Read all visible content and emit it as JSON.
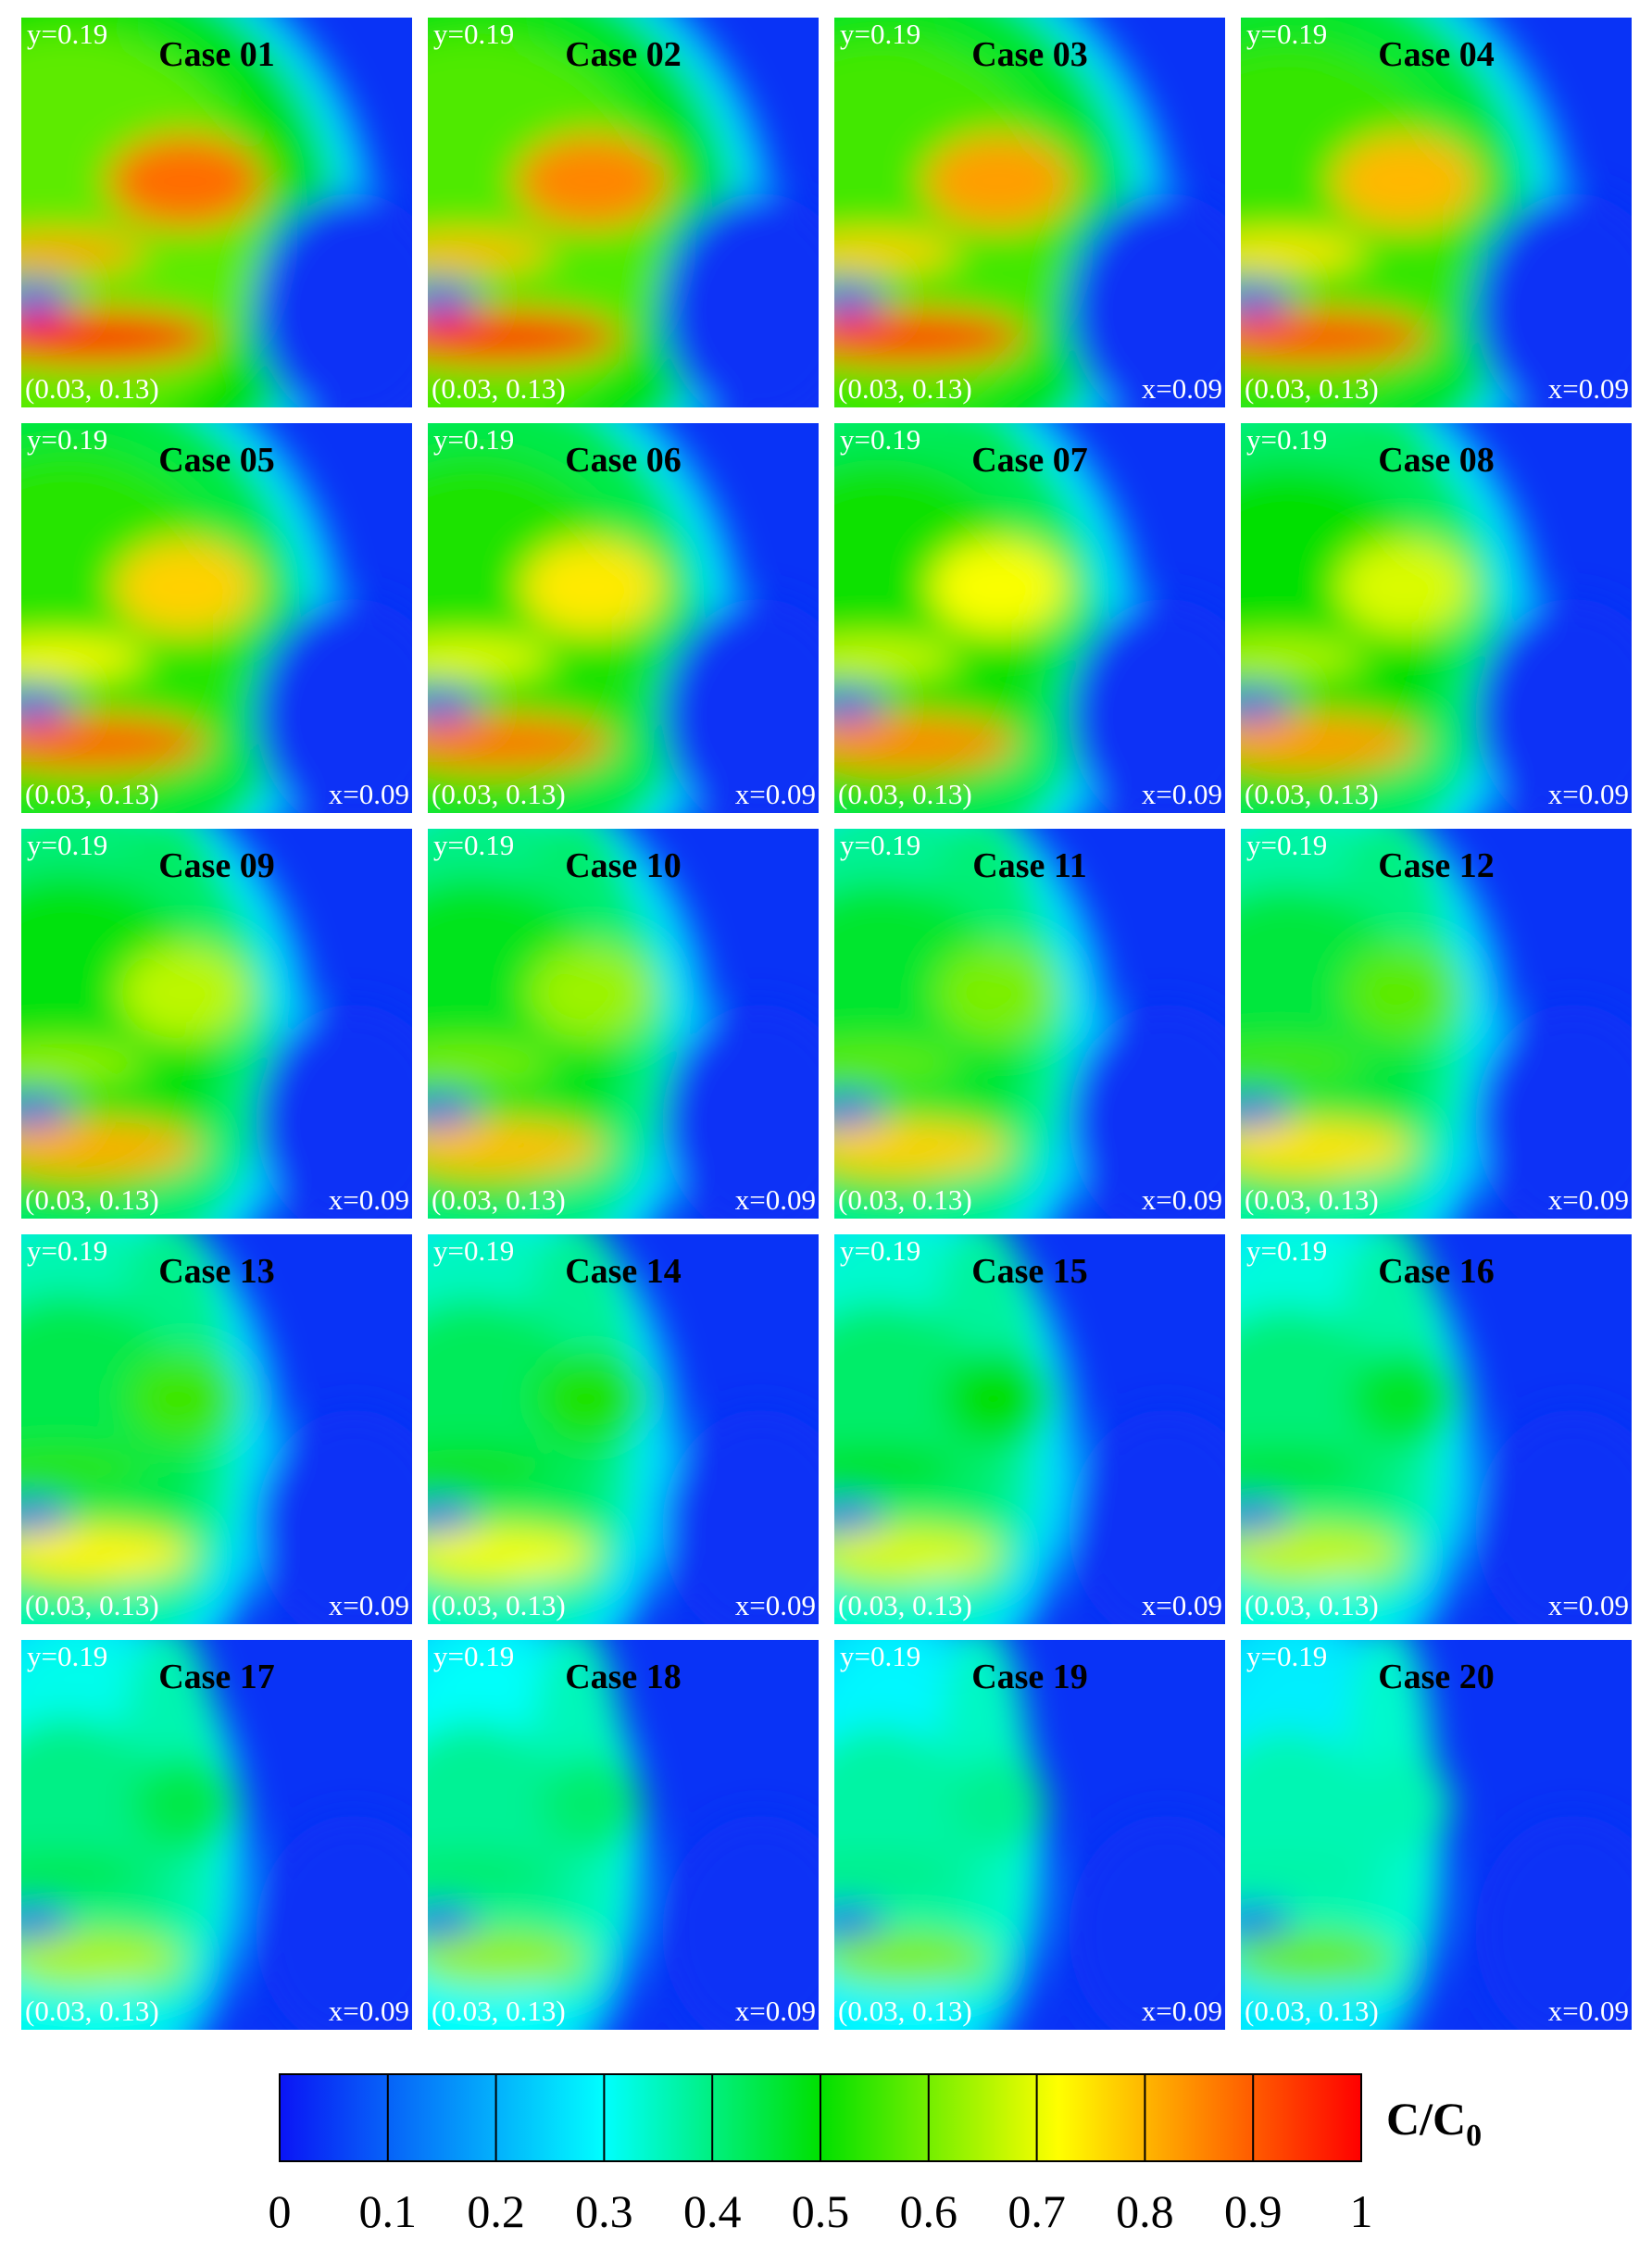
{
  "panels": [
    {
      "title": "Case 01",
      "y_label": "y=0.19",
      "corner_label": "(0.03, 0.13)"
    },
    {
      "title": "Case 02",
      "y_label": "y=0.19",
      "corner_label": "(0.03, 0.13)"
    },
    {
      "title": "Case 03",
      "y_label": "y=0.19",
      "corner_label": "(0.03, 0.13)",
      "x_label": "x=0.09"
    },
    {
      "title": "Case 04",
      "y_label": "y=0.19",
      "corner_label": "(0.03, 0.13)",
      "x_label": "x=0.09"
    },
    {
      "title": "Case 05",
      "y_label": "y=0.19",
      "corner_label": "(0.03, 0.13)",
      "x_label": "x=0.09"
    },
    {
      "title": "Case 06",
      "y_label": "y=0.19",
      "corner_label": "(0.03, 0.13)",
      "x_label": "x=0.09"
    },
    {
      "title": "Case 07",
      "y_label": "y=0.19",
      "corner_label": "(0.03, 0.13)",
      "x_label": "x=0.09"
    },
    {
      "title": "Case 08",
      "y_label": "y=0.19",
      "corner_label": "(0.03, 0.13)",
      "x_label": "x=0.09"
    },
    {
      "title": "Case 09",
      "y_label": "y=0.19",
      "corner_label": "(0.03, 0.13)",
      "x_label": "x=0.09"
    },
    {
      "title": "Case 10",
      "y_label": "y=0.19",
      "corner_label": "(0.03, 0.13)",
      "x_label": "x=0.09"
    },
    {
      "title": "Case 11",
      "y_label": "y=0.19",
      "corner_label": "(0.03, 0.13)",
      "x_label": "x=0.09"
    },
    {
      "title": "Case 12",
      "y_label": "y=0.19",
      "corner_label": "(0.03, 0.13)",
      "x_label": "x=0.09"
    },
    {
      "title": "Case 13",
      "y_label": "y=0.19",
      "corner_label": "(0.03, 0.13)",
      "x_label": "x=0.09"
    },
    {
      "title": "Case 14",
      "y_label": "y=0.19",
      "corner_label": "(0.03, 0.13)",
      "x_label": "x=0.09"
    },
    {
      "title": "Case 15",
      "y_label": "y=0.19",
      "corner_label": "(0.03, 0.13)",
      "x_label": "x=0.09"
    },
    {
      "title": "Case 16",
      "y_label": "y=0.19",
      "corner_label": "(0.03, 0.13)",
      "x_label": "x=0.09"
    },
    {
      "title": "Case 17",
      "y_label": "y=0.19",
      "corner_label": "(0.03, 0.13)",
      "x_label": "x=0.09"
    },
    {
      "title": "Case 18",
      "y_label": "y=0.19",
      "corner_label": "(0.03, 0.13)",
      "x_label": "x=0.09"
    },
    {
      "title": "Case 19",
      "y_label": "y=0.19",
      "corner_label": "(0.03, 0.13)",
      "x_label": "x=0.09"
    },
    {
      "title": "Case 20",
      "y_label": "y=0.19",
      "corner_label": "(0.03, 0.13)",
      "x_label": "x=0.09"
    }
  ],
  "colorbar": {
    "label": "C/C",
    "label_subscript": "0",
    "range": [
      0,
      1
    ],
    "ticks": [
      0,
      0.1,
      0.2,
      0.3,
      0.4,
      0.5,
      0.6,
      0.7,
      0.8,
      0.9,
      1
    ]
  }
}
